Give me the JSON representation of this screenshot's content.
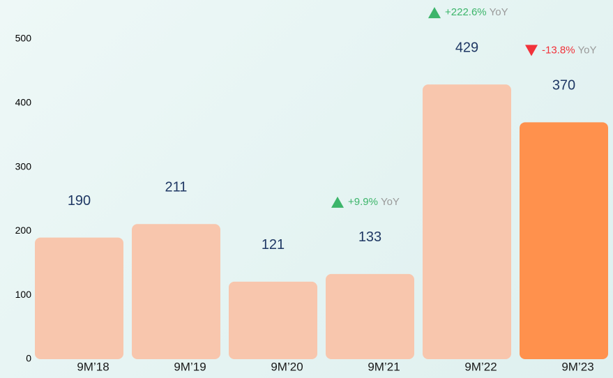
{
  "chart_data": {
    "type": "bar",
    "categories": [
      "9M’18",
      "9M’19",
      "9M’20",
      "9M’21",
      "9M’22",
      "9M’23"
    ],
    "values": [
      190,
      211,
      121,
      133,
      429,
      370
    ],
    "colors": [
      "#f8c6ad",
      "#f8c6ad",
      "#f8c6ad",
      "#f8c6ad",
      "#f8c6ad",
      "#ff914d"
    ],
    "ylim": [
      0,
      500
    ],
    "yticks": [
      0,
      100,
      200,
      300,
      400,
      500
    ],
    "grid": false,
    "value_label_color": "#1f3864",
    "annotations": [
      {
        "category": "9M’21",
        "change": "+9.9%",
        "suffix": "YoY",
        "direction": "up"
      },
      {
        "category": "9M’22",
        "change": "+222.6%",
        "suffix": "YoY",
        "direction": "up"
      },
      {
        "category": "9M’23",
        "change": "-13.8%",
        "suffix": "YoY",
        "direction": "down"
      }
    ],
    "up_color": "#3cb56a",
    "down_color": "#f2323a",
    "suffix_color": "#9a9a9a"
  }
}
